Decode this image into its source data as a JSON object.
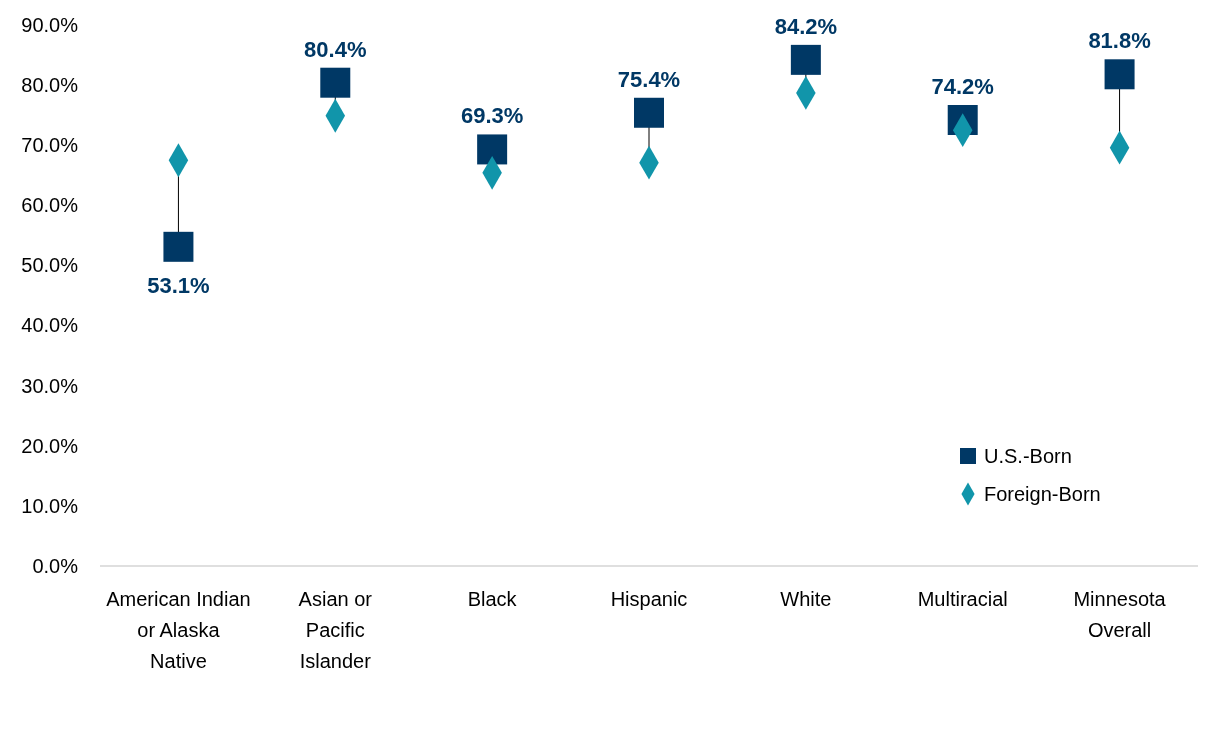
{
  "chart_data": {
    "type": "scatter",
    "categories": [
      "American Indian or Alaska Native",
      "Asian or Pacific Islander",
      "Black",
      "Hispanic",
      "White",
      "Multiracial",
      "Minnesota Overall"
    ],
    "series": [
      {
        "name": "U.S.-Born",
        "color": "#003865",
        "marker": "square",
        "values": [
          53.1,
          80.4,
          69.3,
          75.4,
          84.2,
          74.2,
          81.8
        ],
        "value_labels": [
          "53.1%",
          "80.4%",
          "69.3%",
          "75.4%",
          "84.2%",
          "74.2%",
          "81.8%"
        ]
      },
      {
        "name": "Foreign-Born",
        "color": "#1195aa",
        "marker": "diamond",
        "values": [
          67.5,
          74.9,
          65.4,
          67.1,
          78.7,
          72.5,
          69.6
        ]
      }
    ],
    "ylim": [
      0,
      90
    ],
    "yticks": [
      {
        "value": 0,
        "label": "0.0%"
      },
      {
        "value": 10,
        "label": "10.0%"
      },
      {
        "value": 20,
        "label": "20.0%"
      },
      {
        "value": 30,
        "label": "30.0%"
      },
      {
        "value": 40,
        "label": "40.0%"
      },
      {
        "value": 50,
        "label": "50.0%"
      },
      {
        "value": 60,
        "label": "60.0%"
      },
      {
        "value": 70,
        "label": "70.0%"
      },
      {
        "value": 80,
        "label": "80.0%"
      },
      {
        "value": 90,
        "label": "90.0%"
      }
    ],
    "grid": false,
    "legend": "bottom right"
  }
}
